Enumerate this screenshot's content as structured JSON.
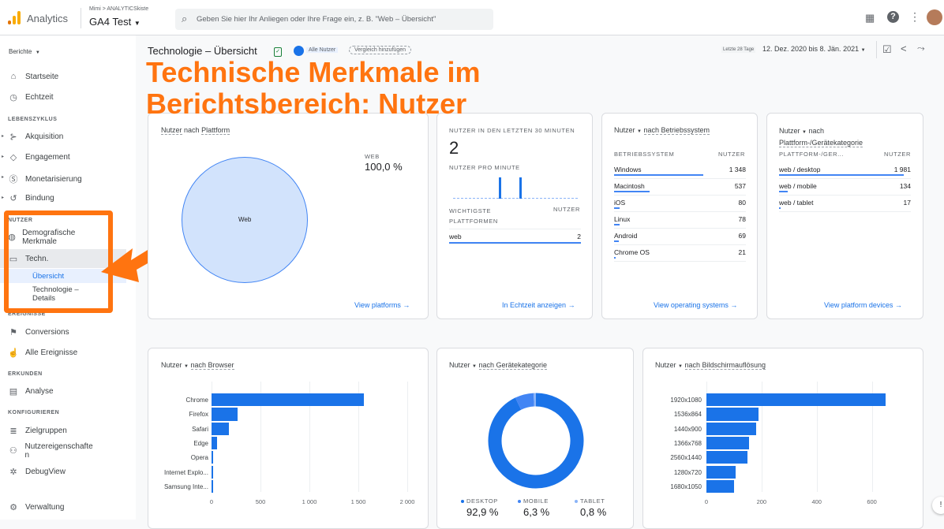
{
  "topbar": {
    "app_name": "Analytics",
    "breadcrumb": "Mimi > ANALYTICSkiste",
    "property": "GA4 Test",
    "search_placeholder": "Geben Sie hier Ihr Anliegen oder Ihre Frage ein, z. B. \"Web – Übersicht\""
  },
  "sidebar": {
    "reports_label": "Berichte",
    "items": [
      {
        "label": "Startseite",
        "icon": "home-icon"
      },
      {
        "label": "Echtzeit",
        "icon": "clock-icon"
      }
    ],
    "sections": {
      "lifecycle": "LEBENSZYKLUS",
      "user": "NUTZER",
      "events": "EREIGNISSE",
      "explore": "ERKUNDEN",
      "configure": "KONFIGURIEREN"
    },
    "lifecycle": [
      {
        "label": "Akquisition"
      },
      {
        "label": "Engagement"
      },
      {
        "label": "Monetarisierung"
      },
      {
        "label": "Bindung"
      }
    ],
    "user": {
      "demo": "Demografische Merkmale",
      "tech": "Techn.",
      "overview": "Übersicht",
      "details": "Technologie – Details"
    },
    "events": [
      {
        "label": "Conversions"
      },
      {
        "label": "Alle Ereignisse"
      }
    ],
    "explore": [
      {
        "label": "Analyse"
      }
    ],
    "configure": [
      {
        "label": "Zielgruppen"
      },
      {
        "label": "Nutzereigenschaften"
      },
      {
        "label": "DebugView"
      }
    ],
    "admin": "Verwaltung"
  },
  "header": {
    "title": "Technologie – Übersicht",
    "chip_all": "Alle Nutzer",
    "chip_compare": "Vergleich hinzufügen",
    "date_hint": "Letzte 28 Tage",
    "date_range": "12. Dez. 2020 bis 8. Jän. 2021"
  },
  "overlay": {
    "line1": "Technische Merkmale im",
    "line2": "Berichtsbereich: Nutzer"
  },
  "platform_card": {
    "title_a": "Nutzer",
    "title_b": "nach",
    "title_c": "Plattform",
    "slice_label": "Web",
    "legend_label": "WEB",
    "legend_value": "100,0 %",
    "link": "View platforms"
  },
  "realtime_card": {
    "title": "NUTZER IN DEN LETZTEN 30 MINUTEN",
    "value": "2",
    "per_minute": "NUTZER PRO MINUTE",
    "col1": "WICHTIGSTE PLATTFORMEN",
    "col2": "NUTZER",
    "rows": [
      {
        "label": "web",
        "value": "2"
      }
    ],
    "link": "In Echtzeit anzeigen"
  },
  "os_card": {
    "metric": "Nutzer",
    "dim": "nach Betriebssystem",
    "col1": "BETRIEBSSYSTEM",
    "col2": "NUTZER",
    "rows": [
      {
        "label": "Windows",
        "value": "1 348",
        "n": 1348
      },
      {
        "label": "Macintosh",
        "value": "537",
        "n": 537
      },
      {
        "label": "iOS",
        "value": "80",
        "n": 80
      },
      {
        "label": "Linux",
        "value": "78",
        "n": 78
      },
      {
        "label": "Android",
        "value": "69",
        "n": 69
      },
      {
        "label": "Chrome OS",
        "value": "21",
        "n": 21
      }
    ],
    "link": "View operating systems"
  },
  "device_card": {
    "metric": "Nutzer",
    "dim_a": "nach",
    "dim_b": "Plattform-/Gerätekategorie",
    "col1": "PLATTFORM-/GER...",
    "col2": "NUTZER",
    "rows": [
      {
        "label": "web / desktop",
        "value": "1 981",
        "n": 1981
      },
      {
        "label": "web / mobile",
        "value": "134",
        "n": 134
      },
      {
        "label": "web / tablet",
        "value": "17",
        "n": 17
      }
    ],
    "link": "View platform devices"
  },
  "browser_card": {
    "metric": "Nutzer",
    "dim": "nach Browser"
  },
  "category_card": {
    "metric": "Nutzer",
    "dim": "nach Gerätekategorie"
  },
  "resolution_card": {
    "metric": "Nutzer",
    "dim": "nach Bildschirmauflösung"
  },
  "colors": {
    "primary": "#1a73e8",
    "light": "#4285f4",
    "pale": "#8ab4f8",
    "overlay": "#ff7410"
  },
  "chart_data": [
    {
      "type": "bar",
      "orientation": "horizontal",
      "categories": [
        "Chrome",
        "Firefox",
        "Safari",
        "Edge",
        "Opera",
        "Internet Explo...",
        "Samsung Inte..."
      ],
      "values": [
        1560,
        270,
        175,
        60,
        15,
        12,
        5
      ],
      "xlim": [
        0,
        2000
      ],
      "ticks": [
        "0",
        "500",
        "1 000",
        "1 500",
        "2 000"
      ],
      "tick_values": [
        0,
        500,
        1000,
        1500,
        2000
      ],
      "grid": true
    },
    {
      "type": "pie",
      "donut": true,
      "categories": [
        "DESKTOP",
        "MOBILE",
        "TABLET"
      ],
      "labels": [
        "92,9 %",
        "6,3 %",
        "0,8 %"
      ],
      "values": [
        92.9,
        6.3,
        0.8
      ],
      "colors": [
        "#1a73e8",
        "#4285f4",
        "#8ab4f8"
      ]
    },
    {
      "type": "bar",
      "orientation": "horizontal",
      "categories": [
        "1920x1080",
        "1536x864",
        "1440x900",
        "1366x768",
        "2560x1440",
        "1280x720",
        "1680x1050"
      ],
      "values": [
        650,
        190,
        180,
        155,
        150,
        105,
        100
      ],
      "xlim": [
        0,
        730
      ],
      "ticks": [
        "0",
        "200",
        "400",
        "600"
      ],
      "tick_values": [
        0,
        200,
        400,
        600
      ],
      "grid": true
    }
  ]
}
